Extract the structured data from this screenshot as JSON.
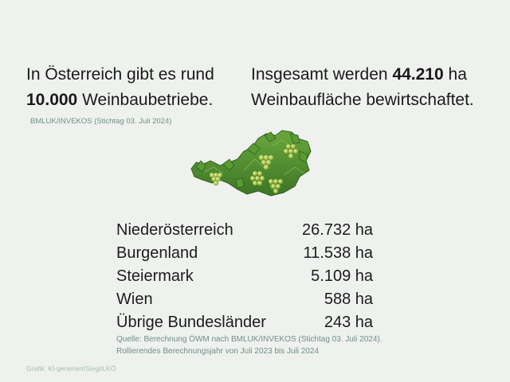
{
  "headline_left": {
    "pre": "In Österreich gibt es rund",
    "number": "10.000",
    "post": "Weinbaubetriebe."
  },
  "headline_right": {
    "pre": "Insgesamt werden",
    "number": "44.210",
    "unit": "ha",
    "post": "Weinbaufläche bewirtschaftet."
  },
  "source_top": "BMLUK/INVEKOS (Stichtag 03. Juli 2024)",
  "map": {
    "icon": "austria-vine-leaves-grapes",
    "colors": {
      "leaf": "#4f8f2f",
      "grape": "#b9d65a"
    }
  },
  "table": [
    {
      "name": "Niederösterreich",
      "value": "26.732 ha"
    },
    {
      "name": "Burgenland",
      "value": "11.538 ha"
    },
    {
      "name": "Steiermark",
      "value": "5.109 ha"
    },
    {
      "name": "Wien",
      "value": "588 ha"
    },
    {
      "name": "Übrige Bundesländer",
      "value": "243 ha"
    }
  ],
  "source_bottom": "Quelle: Berechnung ÖWM nach BMLUK/INVEKOS (Stichtag 03. Juli 2024). Rollierendes Berechnungsjahr von Juli 2023 bis Juli 2024",
  "credit": "Grafik: KI-generiert/Siegl/LKÖ"
}
